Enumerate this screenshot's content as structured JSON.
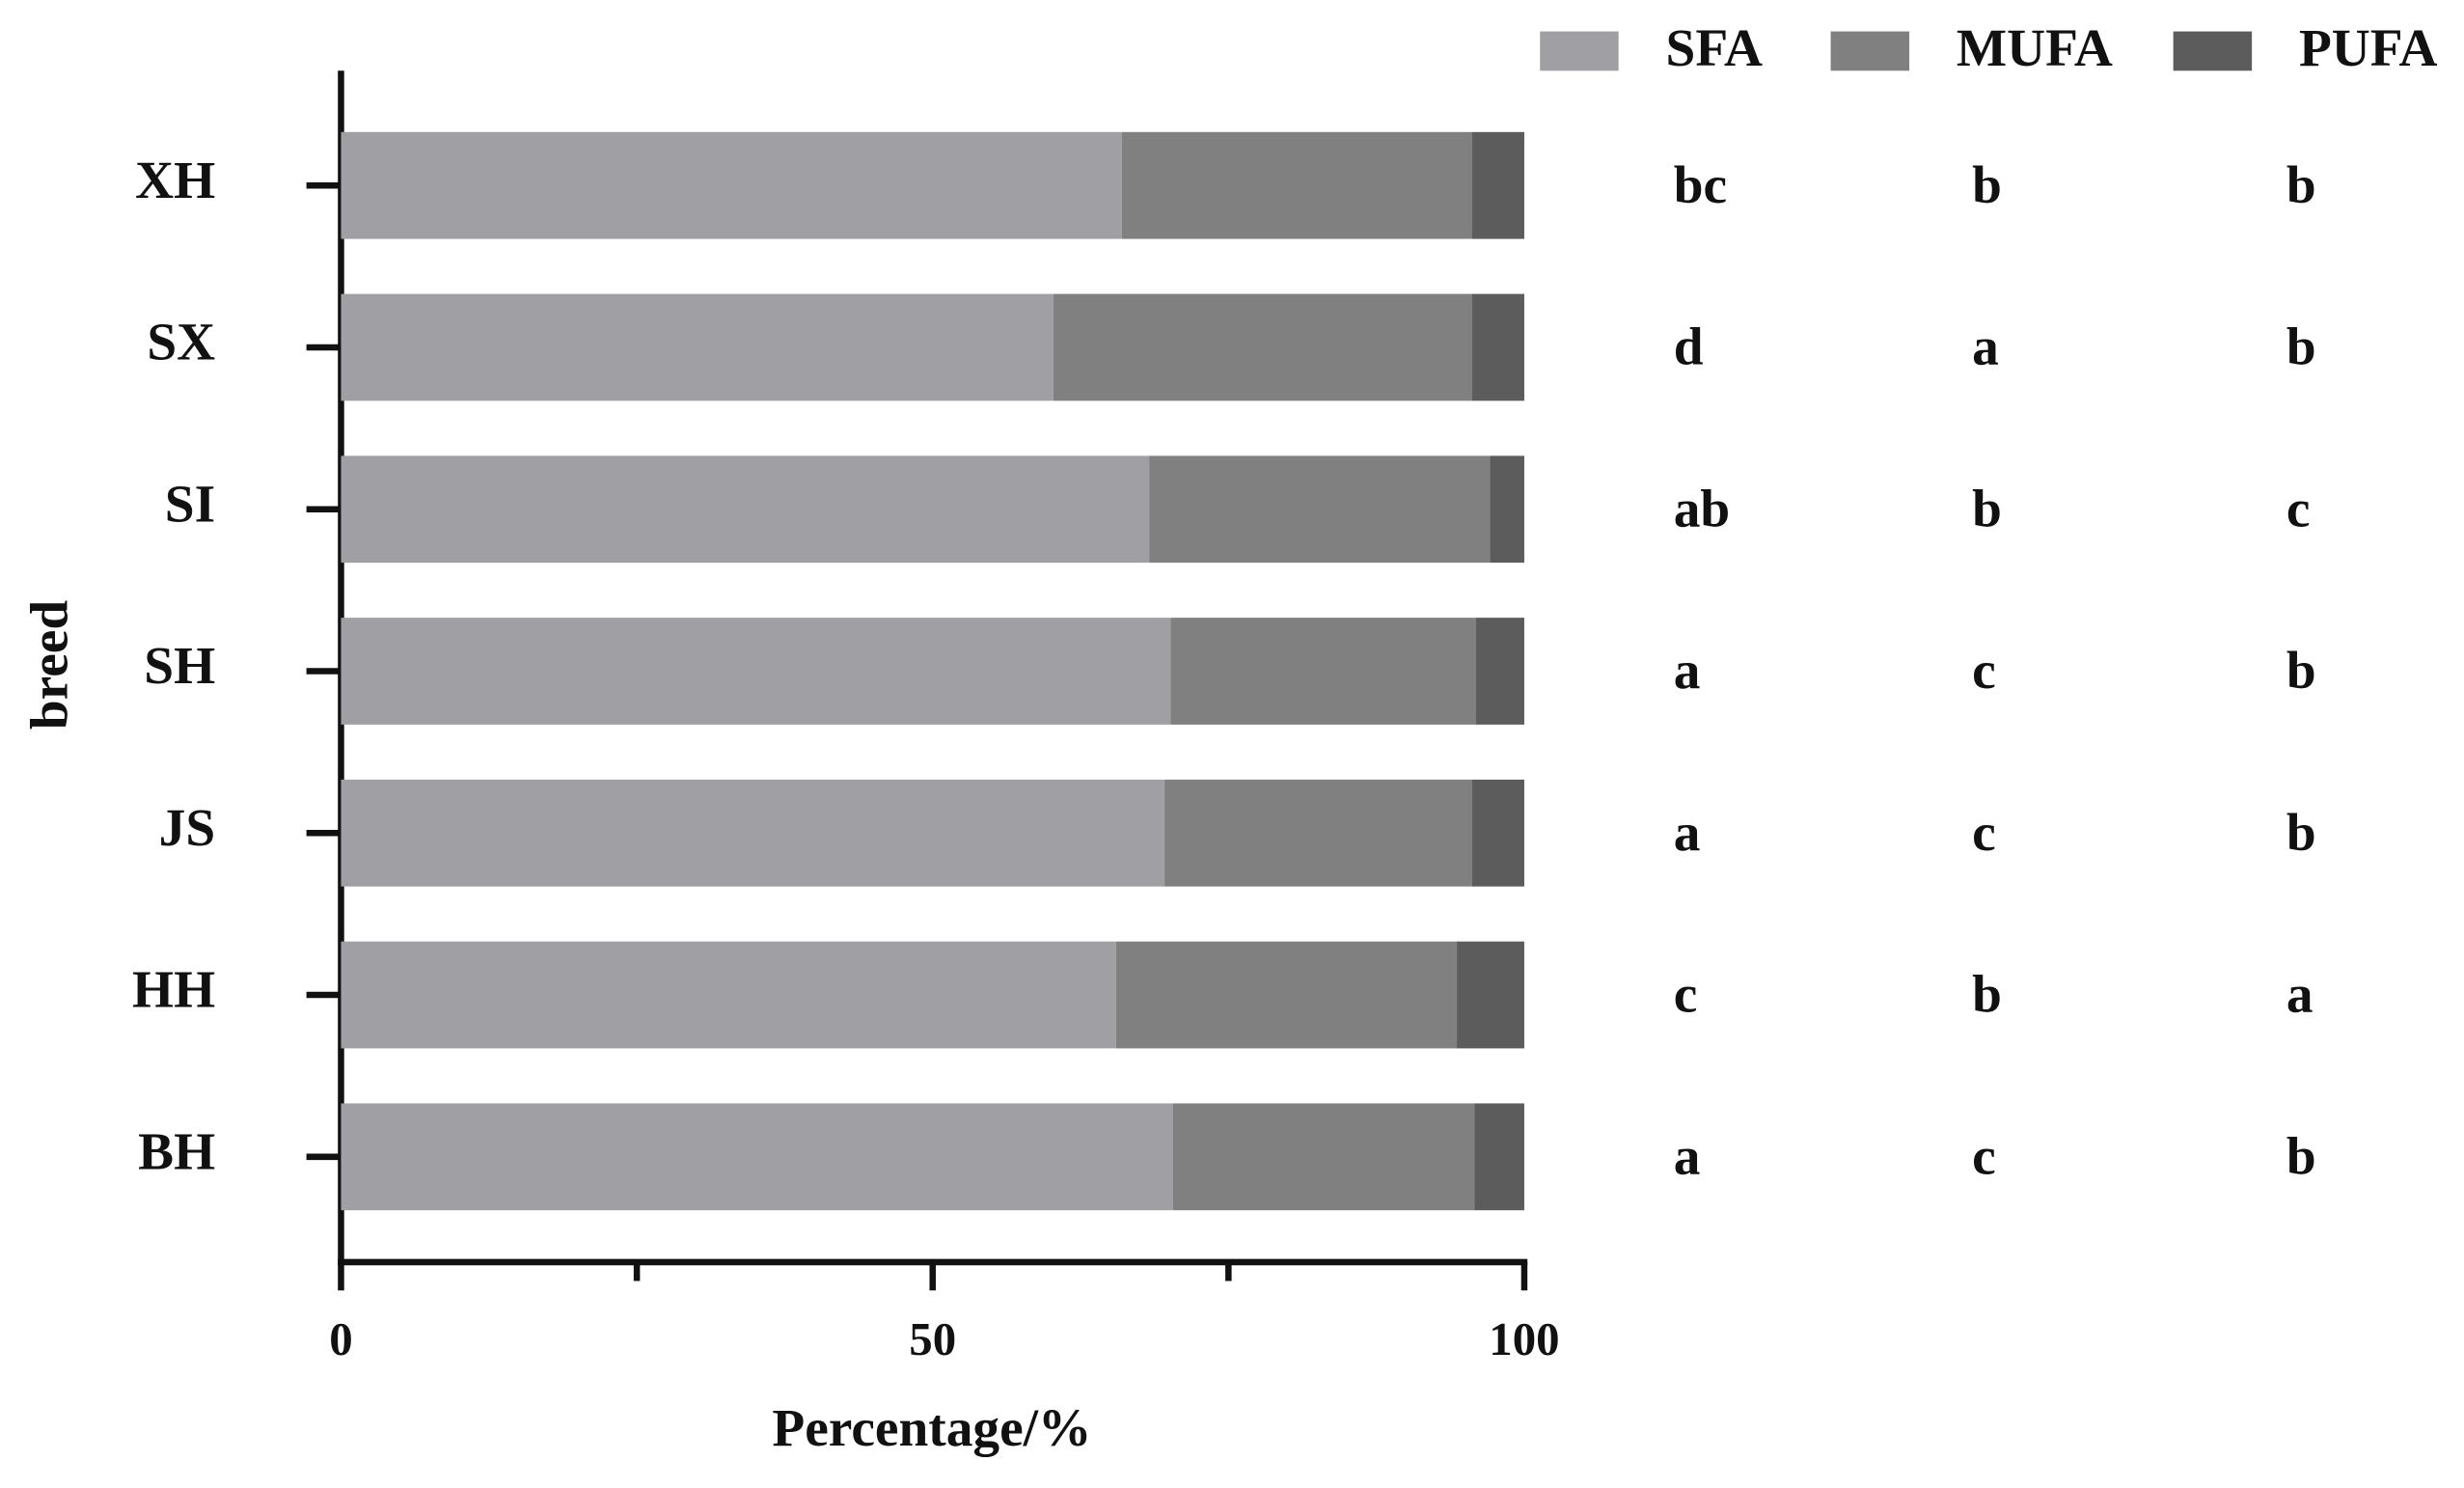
{
  "chart_data": {
    "type": "stacked-barh",
    "y_label": "breed",
    "x_label": "Percentage/%",
    "categories": [
      "XH",
      "SX",
      "SI",
      "SH",
      "JS",
      "HH",
      "BH"
    ],
    "series": [
      {
        "name": "SFA",
        "color": "#a0a0a4",
        "values": [
          66.0,
          60.2,
          68.3,
          70.1,
          69.6,
          65.5,
          70.3
        ],
        "labels": [
          "bc",
          "d",
          "ab",
          "a",
          "a",
          "c",
          "a"
        ]
      },
      {
        "name": "MUFA",
        "color": "#808080",
        "values": [
          29.6,
          35.4,
          28.8,
          25.8,
          26.0,
          28.8,
          25.5
        ],
        "labels": [
          "b",
          "a",
          "b",
          "c",
          "c",
          "b",
          "c"
        ]
      },
      {
        "name": "PUFA",
        "color": "#5c5c5c",
        "values": [
          4.4,
          4.4,
          2.9,
          4.1,
          4.4,
          5.7,
          4.2
        ],
        "labels": [
          "b",
          "b",
          "c",
          "b",
          "b",
          "a",
          "b"
        ]
      }
    ],
    "xlim": [
      0,
      100
    ],
    "xticks": [
      0,
      50,
      100
    ],
    "xminor_ticks": [
      25,
      75
    ],
    "legend": "top-right"
  }
}
